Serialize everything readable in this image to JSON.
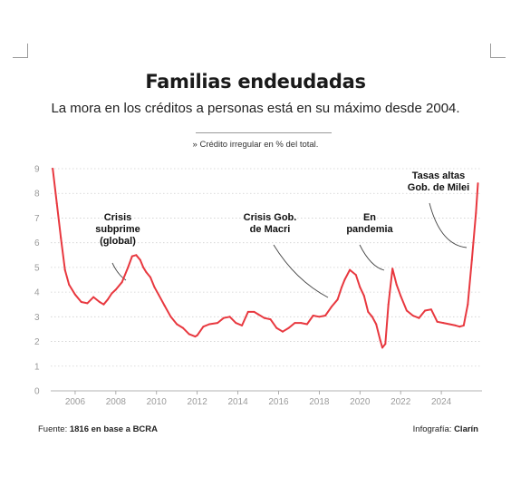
{
  "title": "Familias endeudadas",
  "subtitle": "La mora en los créditos a personas está en su máximo desde 2004.",
  "note": "» Crédito irregular en % del total.",
  "footer": {
    "source_prefix": "Fuente:",
    "source": "1816 en base a BCRA",
    "credit_prefix": "Infografía:",
    "credit": "Clarín"
  },
  "chart_data": {
    "type": "line",
    "title": "Familias endeudadas",
    "ylabel": "",
    "xlabel": "",
    "ylim": [
      0,
      9
    ],
    "xlim": [
      2004.8,
      2026.0
    ],
    "yticks": [
      0,
      1,
      2,
      3,
      4,
      5,
      6,
      7,
      8,
      9
    ],
    "xticks": [
      2006,
      2008,
      2010,
      2012,
      2014,
      2016,
      2018,
      2020,
      2022,
      2024
    ],
    "grid": "horizontal",
    "color": "#e8383f",
    "series": [
      {
        "x": [
          2004.9,
          2005.1,
          2005.3,
          2005.5,
          2005.7,
          2006.0,
          2006.3,
          2006.6,
          2006.9,
          2007.2,
          2007.4,
          2007.6,
          2007.8,
          2008.0,
          2008.3,
          2008.6,
          2008.8,
          2009.0,
          2009.2,
          2009.35,
          2009.5,
          2009.7,
          2009.9,
          2010.1,
          2010.4,
          2010.7,
          2011.0,
          2011.3,
          2011.6,
          2011.9,
          2012.0,
          2012.3,
          2012.6,
          2013.0,
          2013.3,
          2013.6,
          2013.9,
          2014.2,
          2014.5,
          2014.8,
          2015.0,
          2015.3,
          2015.6,
          2015.9,
          2016.2,
          2016.5,
          2016.8,
          2017.1,
          2017.4,
          2017.7,
          2018.0,
          2018.3,
          2018.6,
          2018.9,
          2019.1,
          2019.25,
          2019.5,
          2019.8,
          2020.0,
          2020.2,
          2020.4,
          2020.6,
          2020.8,
          2021.0,
          2021.1,
          2021.25,
          2021.4,
          2021.6,
          2021.8,
          2022.0,
          2022.3,
          2022.6,
          2022.9,
          2023.2,
          2023.5,
          2023.8,
          2024.1,
          2024.4,
          2024.7,
          2024.9,
          2025.1,
          2025.3,
          2025.5,
          2025.7,
          2025.8
        ],
        "values": [
          9.0,
          7.6,
          6.2,
          4.9,
          4.3,
          3.9,
          3.6,
          3.55,
          3.8,
          3.6,
          3.5,
          3.7,
          3.95,
          4.1,
          4.4,
          5.0,
          5.45,
          5.5,
          5.3,
          5.0,
          4.8,
          4.6,
          4.2,
          3.9,
          3.45,
          3.0,
          2.7,
          2.55,
          2.3,
          2.2,
          2.25,
          2.6,
          2.7,
          2.75,
          2.95,
          3.0,
          2.75,
          2.65,
          3.2,
          3.2,
          3.1,
          2.95,
          2.9,
          2.55,
          2.4,
          2.55,
          2.75,
          2.75,
          2.7,
          3.05,
          3.0,
          3.05,
          3.4,
          3.7,
          4.2,
          4.5,
          4.9,
          4.7,
          4.2,
          3.85,
          3.2,
          3.0,
          2.7,
          2.05,
          1.75,
          1.9,
          3.5,
          4.95,
          4.3,
          3.85,
          3.25,
          3.05,
          2.95,
          3.25,
          3.3,
          2.8,
          2.75,
          2.7,
          2.65,
          2.6,
          2.65,
          3.5,
          5.3,
          7.2,
          8.4
        ]
      }
    ],
    "annotations": [
      {
        "lines": [
          "Crisis",
          "subprime",
          "(global)"
        ],
        "x": 2008.8,
        "y": 4.6
      },
      {
        "lines": [
          "Crisis Gob.",
          "de Macri"
        ],
        "x": 2018.5,
        "y": 3.8
      },
      {
        "lines": [
          "En",
          "pandemia"
        ],
        "x": 2021.1,
        "y": 5.0
      },
      {
        "lines": [
          "Tasas altas",
          "Gob. de Milei"
        ],
        "x": 2025.5,
        "y": 5.8
      }
    ]
  }
}
